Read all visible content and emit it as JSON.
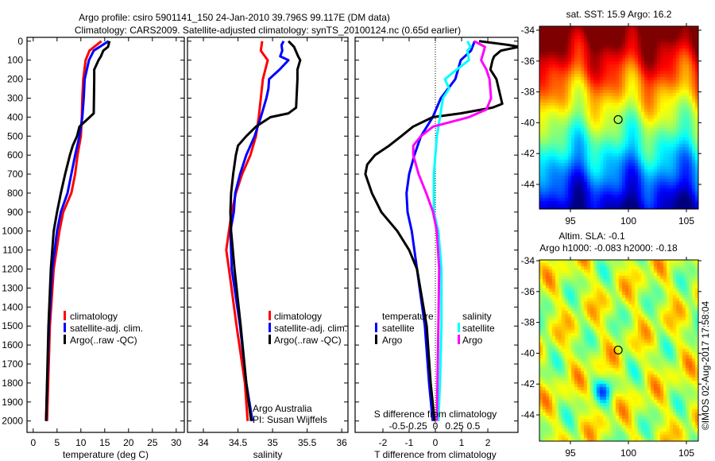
{
  "title": {
    "line1": "Argo profile: csiro 5901141_150 24-Jan-2010 39.796S 99.117E (DM data)",
    "line2": "Climatology: CARS2009. Satellite-adjusted climatology: synTS_20100124.nc (0.65d earlier)"
  },
  "chart_data": [
    {
      "type": "line",
      "id": "temperature",
      "xlabel": "temperature (deg C)",
      "ylabel": "depth",
      "xlim": [
        -1.3,
        31.7
      ],
      "ylim": [
        2060,
        -20
      ],
      "xticks": [
        0,
        5,
        10,
        15,
        20,
        25,
        30
      ],
      "yticks": [
        0,
        100,
        200,
        300,
        400,
        500,
        600,
        700,
        800,
        900,
        1000,
        1100,
        1200,
        1300,
        1400,
        1500,
        1600,
        1700,
        1800,
        1900,
        2000
      ],
      "legend": [
        "climatology",
        "satellite-adj. clim.",
        "Argo(..raw -QC)"
      ],
      "series": [
        {
          "name": "climatology",
          "color": "#ff0000",
          "depth": [
            0,
            50,
            100,
            200,
            300,
            400,
            500,
            600,
            700,
            800,
            900,
            1000,
            1200,
            1500,
            2000
          ],
          "values": [
            14.3,
            11.8,
            11.0,
            10.5,
            10.3,
            10.2,
            10.0,
            9.3,
            8.8,
            8.0,
            6.3,
            5.5,
            4.3,
            3.5,
            2.9
          ]
        },
        {
          "name": "satellite-adj. clim.",
          "color": "#0000ff",
          "depth": [
            0,
            50,
            100,
            200,
            300,
            400,
            500,
            600,
            700,
            800,
            900,
            1000,
            1200,
            1500,
            2000
          ],
          "values": [
            15.8,
            12.7,
            11.7,
            10.8,
            10.6,
            10.3,
            9.7,
            8.8,
            8.0,
            7.2,
            5.8,
            5.0,
            4.0,
            3.3,
            2.7
          ]
        },
        {
          "name": "Argo(..raw -QC)",
          "color": "#000000",
          "depth": [
            0,
            30,
            50,
            80,
            100,
            150,
            200,
            380,
            420,
            450,
            500,
            550,
            600,
            700,
            800,
            900,
            1000,
            1200,
            1500,
            2000
          ],
          "values": [
            16.0,
            15.7,
            14.7,
            14.2,
            13.7,
            12.8,
            12.8,
            12.7,
            11.0,
            9.7,
            9.2,
            8.3,
            7.7,
            6.7,
            5.8,
            5.0,
            4.3,
            3.7,
            3.2,
            2.7
          ]
        }
      ]
    },
    {
      "type": "line",
      "id": "salinity",
      "xlabel": "salinity",
      "xlim": [
        33.77,
        36.09
      ],
      "ylim": [
        2060,
        -20
      ],
      "xticks": [
        34,
        34.5,
        35,
        35.5,
        36
      ],
      "legend": [
        "climatology",
        "satellite-adj. clim.",
        "Argo(..raw -QC)"
      ],
      "annotation": [
        "Argo Australia",
        "PI: Susan Wijffels"
      ],
      "series": [
        {
          "name": "climatology",
          "color": "#ff0000",
          "depth": [
            0,
            50,
            100,
            200,
            300,
            400,
            500,
            600,
            700,
            800,
            900,
            1000,
            1100,
            1200,
            1500,
            1800,
            2000
          ],
          "values": [
            34.85,
            34.83,
            34.93,
            34.86,
            34.83,
            34.8,
            34.76,
            34.68,
            34.56,
            34.47,
            34.41,
            34.37,
            34.33,
            34.37,
            34.48,
            34.6,
            34.64
          ]
        },
        {
          "name": "satellite-adj. clim.",
          "color": "#0000ff",
          "depth": [
            0,
            20,
            50,
            80,
            100,
            150,
            200,
            250,
            300,
            400,
            500,
            600,
            700,
            800,
            900,
            1000,
            1200,
            1500,
            1800,
            2000
          ],
          "values": [
            35.16,
            35.13,
            35.14,
            35.11,
            35.23,
            35.1,
            34.95,
            34.94,
            34.91,
            34.83,
            34.74,
            34.62,
            34.53,
            34.46,
            34.44,
            34.39,
            34.41,
            34.53,
            34.62,
            34.71
          ]
        },
        {
          "name": "Argo(..raw -QC)",
          "color": "#000000",
          "depth": [
            0,
            30,
            80,
            100,
            150,
            200,
            350,
            380,
            400,
            450,
            500,
            550,
            600,
            700,
            800,
            900,
            1000,
            1200,
            1500,
            1800,
            2000
          ],
          "values": [
            35.23,
            35.31,
            35.37,
            35.4,
            35.36,
            35.36,
            35.34,
            35.23,
            34.97,
            34.76,
            34.62,
            34.5,
            34.47,
            34.43,
            34.4,
            34.39,
            34.4,
            34.45,
            34.54,
            34.62,
            34.69
          ]
        }
      ]
    },
    {
      "type": "line",
      "id": "difference",
      "xlabel": "T difference from climatology",
      "x2label": "S difference from climatology",
      "xlim": [
        -3.06,
        3.15
      ],
      "x2lim": [
        -0.5,
        0.5
      ],
      "ylim": [
        2060,
        -20
      ],
      "xticks": [
        -2,
        -1,
        0,
        1,
        2
      ],
      "x2ticks": [
        "-0.5",
        "-0.25",
        "0",
        "0.25",
        "0.5"
      ],
      "x2tick_values": [
        -0.5,
        -0.25,
        0,
        0.25,
        0.5
      ],
      "legend": {
        "temperature_heading": "temperature",
        "salinity_heading": "salinity",
        "items": [
          "satellite",
          "Argo",
          "satellite",
          "Argo"
        ]
      },
      "series": [
        {
          "name": "temperature satellite",
          "axis": "T",
          "color": "#0000ff",
          "depth": [
            0,
            50,
            100,
            200,
            300,
            400,
            500,
            600,
            700,
            800,
            900,
            1000,
            1200,
            1500,
            1800,
            2000
          ],
          "values": [
            1.5,
            1.36,
            0.97,
            0.76,
            0.21,
            -0.1,
            -0.55,
            -0.8,
            -1.0,
            -1.1,
            -1.06,
            -0.9,
            -0.7,
            -0.4,
            -0.24,
            -0.1
          ]
        },
        {
          "name": "temperature Argo",
          "axis": "T",
          "color": "#000000",
          "depth": [
            0,
            20,
            30,
            50,
            80,
            100,
            150,
            200,
            300,
            330,
            350,
            380,
            400,
            450,
            500,
            550,
            600,
            650,
            700,
            800,
            900,
            1000,
            1100,
            1200,
            1500,
            1800,
            2000
          ],
          "values": [
            1.67,
            2.8,
            3.2,
            2.5,
            2.24,
            2.18,
            2.1,
            2.33,
            2.5,
            2.55,
            2.18,
            0.97,
            -0.1,
            -0.85,
            -1.3,
            -1.76,
            -2.3,
            -2.6,
            -2.67,
            -2.42,
            -2.06,
            -1.45,
            -1.0,
            -0.7,
            -0.33,
            -0.18,
            -0.03
          ]
        },
        {
          "name": "salinity satellite",
          "axis": "S",
          "color": "#00ffff",
          "depth": [
            0,
            30,
            50,
            100,
            150,
            200,
            250,
            300,
            400,
            500,
            700,
            900,
            1000,
            1200,
            1500,
            1800,
            2000
          ],
          "values": [
            0.42,
            0.46,
            0.42,
            0.44,
            0.28,
            0.125,
            0.18,
            0.1,
            0.06,
            0.02,
            -0.02,
            -0.02,
            0.04,
            0.08,
            0.08,
            0.06,
            0.04
          ]
        },
        {
          "name": "salinity Argo",
          "axis": "S",
          "color": "#ff00ff",
          "depth": [
            0,
            30,
            60,
            100,
            150,
            200,
            300,
            360,
            400,
            450,
            500,
            550,
            600,
            700,
            800,
            900,
            1000,
            1200,
            1500,
            2000
          ],
          "values": [
            0.51,
            0.65,
            0.63,
            0.6,
            0.67,
            0.71,
            0.73,
            0.67,
            0.44,
            -0.03,
            -0.19,
            -0.29,
            -0.29,
            -0.22,
            -0.12,
            -0.03,
            0.02,
            0.05,
            0.04,
            0.02
          ]
        }
      ]
    },
    {
      "type": "heatmap",
      "id": "sst-map",
      "title": "sat. SST: 15.9 Argo: 16.2",
      "xticks": [
        95,
        100,
        105
      ],
      "yticks": [
        -34,
        -36,
        -38,
        -40,
        -42,
        -44
      ],
      "xlim": [
        92.3,
        105.8
      ],
      "ylim": [
        -45.8,
        -33.8
      ],
      "marker": {
        "lon": 99.117,
        "lat": -39.796
      }
    },
    {
      "type": "heatmap",
      "id": "sla-map",
      "title": "Altim. SLA: -0.1",
      "subtitle": "Argo h1000: -0.083 h2000: -0.18",
      "xticks": [
        95,
        100,
        105
      ],
      "yticks": [
        -34,
        -36,
        -38,
        -40,
        -42,
        -44
      ],
      "xlim": [
        92.3,
        105.8
      ],
      "ylim": [
        -45.8,
        -33.8
      ],
      "marker": {
        "lon": 99.117,
        "lat": -39.796
      }
    }
  ],
  "credit": "©IMOS 02-Aug-2017 17:58:04"
}
